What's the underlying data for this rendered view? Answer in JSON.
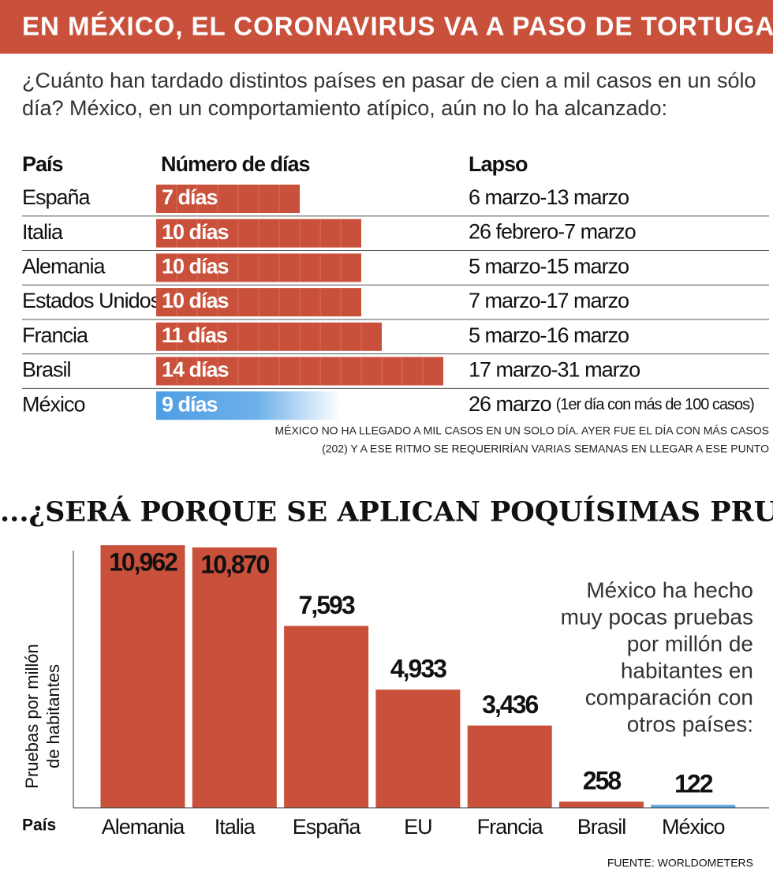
{
  "header": {
    "title": "EN MÉXICO, EL CORONAVIRUS VA A PASO DE TORTUGA",
    "subtitle": [
      "¿Cuánto han tardado distintos países en pasar de cien a mil casos en un sólo",
      "día? México, en un comportamiento atípico, aún no lo ha alcanzado:"
    ]
  },
  "chart_data": [
    {
      "type": "table-bar",
      "headers": [
        "País",
        "Número de días",
        "Lapso"
      ],
      "categories": [
        "España",
        "Italia",
        "Alemania",
        "Estados Unidos",
        "Francia",
        "Brasil",
        "México"
      ],
      "values": [
        7,
        10,
        10,
        10,
        11,
        14,
        9
      ],
      "value_labels": [
        "7 días",
        "10 días",
        "10 días",
        "10 días",
        "11 días",
        "14 días",
        "9 días"
      ],
      "colors": [
        "#c9503a",
        "#c9503a",
        "#c9503a",
        "#c9503a",
        "#c9503a",
        "#c9503a",
        "#4d9de3"
      ],
      "lapses": [
        "6 marzo-13 marzo",
        "26 febrero-7 marzo",
        "5 marzo-15 marzo",
        "7 marzo-17 marzo",
        "5 marzo-16 marzo",
        "17 marzo-31 marzo",
        "26 marzo"
      ],
      "lapse_note": "(1er día con más de 100 casos)",
      "xlim": [
        0,
        15
      ],
      "note": [
        "MÉXICO NO HA LLEGADO A MIL CASOS EN UN SOLO DÍA. AYER FUE EL DÍA CON MÁS CASOS",
        "(202) Y A ESE RITMO SE REQUERIRÍAN VARIAS SEMANAS EN LLEGAR A ESE PUNTO"
      ]
    },
    {
      "type": "bar",
      "title": "...¿SERÁ PORQUE SE APLICAN POQUÍSIMAS PRUEBAS?",
      "y_label": [
        "Pruebas por millón",
        "de habitantes"
      ],
      "x_label": "País",
      "categories": [
        "Alemania",
        "Italia",
        "España",
        "EU",
        "Francia",
        "Brasil",
        "México"
      ],
      "values": [
        10962,
        10870,
        7593,
        4933,
        3436,
        258,
        122
      ],
      "value_labels": [
        "10,962",
        "10,870",
        "7,593",
        "4,933",
        "3,436",
        "258",
        "122"
      ],
      "colors": [
        "#c9503a",
        "#c9503a",
        "#c9503a",
        "#c9503a",
        "#c9503a",
        "#c9503a",
        "#5aa6e2"
      ],
      "ylim": [
        0,
        11000
      ],
      "annotation": [
        "México ha hecho",
        "muy pocas pruebas",
        "por millón de",
        "habitantes en",
        "comparación con",
        "otros países:"
      ],
      "source": "FUENTE: WORLDOMETERS"
    }
  ]
}
